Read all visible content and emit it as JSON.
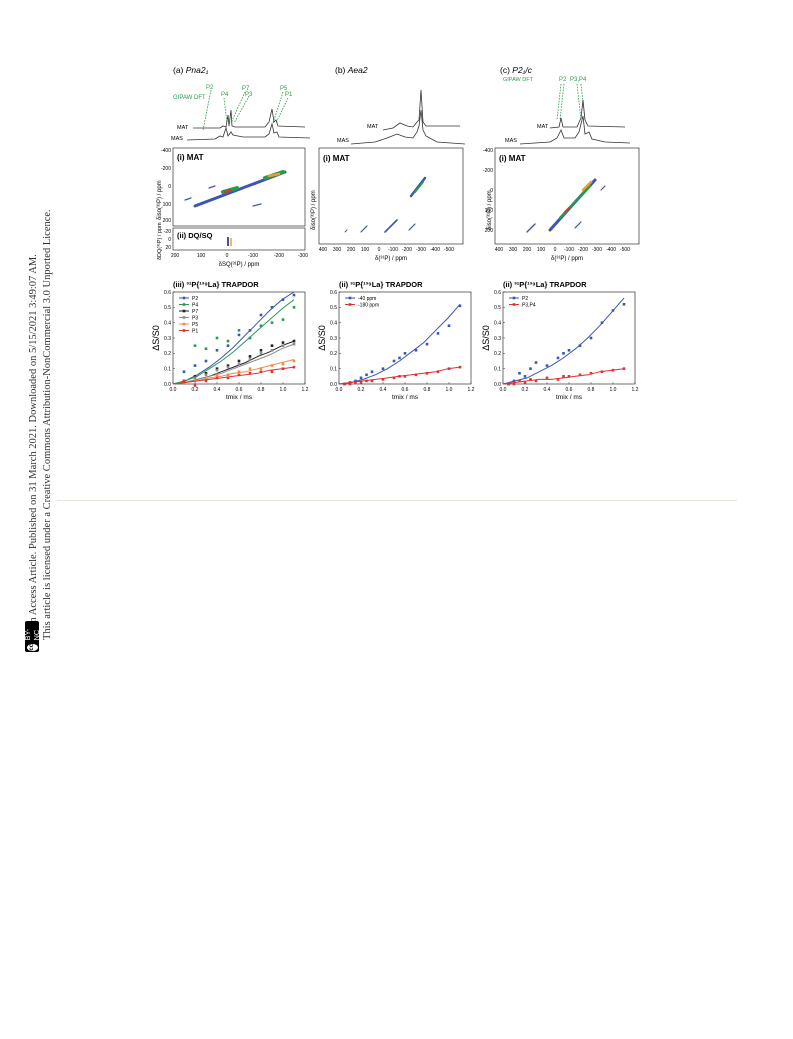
{
  "sidebar": {
    "line1": "Open Access Article. Published on 31 March 2021. Downloaded on 5/15/2021 3:49:07 AM.",
    "line2": "This article is licensed under a Creative Commons Attribution-NonCommercial 3.0 Unported Licence.",
    "badge_cc": "cc",
    "badge_text": "BY-NC"
  },
  "figure": {
    "top": {
      "a": {
        "title_prefix": "(a) ",
        "title_italic": "Pna2₁",
        "gipaw": "GIPAW DFT",
        "peaks": [
          "P2",
          "P4",
          "P7",
          "P3",
          "P5",
          "P1"
        ],
        "mat": "MAT",
        "mas": "MAS"
      },
      "b": {
        "title_prefix": "(b) ",
        "title_italic": "Aea2",
        "mat": "MAT",
        "mas": "MAS"
      },
      "c": {
        "title_prefix": "(c) ",
        "title_italic": "P2₁/c",
        "gipaw": "GIPAW DFT",
        "peaks": [
          "P2",
          "P3,P4"
        ],
        "mat": "MAT",
        "mas": "MAS"
      }
    },
    "mat_panels": {
      "a": {
        "label": "(i) MAT",
        "ylabel": "δiso(³¹P) / ppm",
        "yticks": [
          "-400",
          "-200",
          "0",
          "100",
          "200"
        ]
      },
      "a_dq": {
        "label": "(ii) DQ/SQ",
        "ylabel": "δDQ(³¹P) / ppm",
        "yticks": [
          "-20",
          "0",
          "20"
        ],
        "xticks": [
          "200",
          "100",
          "0",
          "-100",
          "-200",
          "-300"
        ],
        "xlabel": "δSQ(³¹P) / ppm"
      },
      "b": {
        "label": "(i) MAT",
        "ylabel": "δiso(³¹P) / ppm",
        "yticks": [
          "-400",
          "-200",
          "0",
          "100",
          "200"
        ],
        "xticks": [
          "400",
          "300",
          "200",
          "100",
          "0",
          "-100",
          "-200",
          "-300",
          "-400",
          "-500"
        ],
        "xlabel": "δ(³¹P) / ppm"
      },
      "c": {
        "label": "(i) MAT",
        "ylabel": "δiso(³¹P) / ppm",
        "yticks": [
          "-400",
          "-200",
          "0",
          "100",
          "200"
        ],
        "xticks": [
          "400",
          "300",
          "200",
          "100",
          "0",
          "-100",
          "-200",
          "-300",
          "-400",
          "-500"
        ],
        "xlabel": "δ(³¹P) / ppm"
      }
    },
    "colors": {
      "P2": "#3a56b0",
      "P4": "#2a9a4a",
      "P7": "#222222",
      "P3": "#8a8a8a",
      "P5": "#f08a4b",
      "P1": "#e03030",
      "blue": "#3a56b0",
      "red": "#e03030",
      "green": "#2a9a4a"
    }
  },
  "chart_data": [
    {
      "type": "scatter",
      "title": "(iii) ³¹P{¹³⁹La} TRAPDOR",
      "xlabel": "tmix / ms",
      "ylabel": "ΔS/S0",
      "xlim": [
        0.0,
        1.2
      ],
      "ylim": [
        0.0,
        0.6
      ],
      "xticks": [
        "0.0",
        "0.2",
        "0.4",
        "0.6",
        "0.8",
        "1.0",
        "1.2"
      ],
      "yticks": [
        "0.0",
        "0.1",
        "0.2",
        "0.3",
        "0.4",
        "0.5",
        "0.6"
      ],
      "legend": "top-left",
      "series": [
        {
          "name": "P2",
          "color": "#3a56b0",
          "x": [
            0.1,
            0.2,
            0.3,
            0.4,
            0.5,
            0.6,
            0.7,
            0.8,
            0.9,
            1.0,
            1.1
          ],
          "y": [
            0.08,
            0.12,
            0.15,
            0.22,
            0.25,
            0.32,
            0.35,
            0.45,
            0.5,
            0.55,
            0.58
          ],
          "fit": [
            0.0,
            0.02,
            0.06,
            0.11,
            0.17,
            0.24,
            0.32,
            0.4,
            0.48,
            0.55,
            0.6
          ]
        },
        {
          "name": "P4",
          "color": "#2a9a4a",
          "x": [
            0.1,
            0.2,
            0.3,
            0.4,
            0.5,
            0.6,
            0.7,
            0.8,
            0.9,
            1.0,
            1.1
          ],
          "y": [
            0.02,
            0.25,
            0.23,
            0.3,
            0.28,
            0.35,
            0.3,
            0.38,
            0.4,
            0.42,
            0.5
          ],
          "fit": [
            0.0,
            0.02,
            0.05,
            0.1,
            0.15,
            0.21,
            0.28,
            0.35,
            0.42,
            0.49,
            0.55
          ]
        },
        {
          "name": "P7",
          "color": "#222222",
          "x": [
            0.1,
            0.2,
            0.3,
            0.4,
            0.5,
            0.6,
            0.7,
            0.8,
            0.9,
            1.0,
            1.1
          ],
          "y": [
            0.02,
            0.05,
            0.07,
            0.1,
            0.12,
            0.15,
            0.18,
            0.22,
            0.25,
            0.27,
            0.28
          ],
          "fit": [
            0.0,
            0.01,
            0.03,
            0.05,
            0.08,
            0.11,
            0.14,
            0.18,
            0.21,
            0.25,
            0.28
          ]
        },
        {
          "name": "P3",
          "color": "#8a8a8a",
          "x": [
            0.1,
            0.2,
            0.3,
            0.4,
            0.5,
            0.6,
            0.7,
            0.8,
            0.9,
            1.0,
            1.1
          ],
          "y": [
            0.01,
            0.04,
            0.06,
            0.09,
            0.11,
            0.13,
            0.16,
            0.2,
            0.22,
            0.25,
            0.26
          ],
          "fit": [
            0.0,
            0.01,
            0.03,
            0.05,
            0.07,
            0.1,
            0.13,
            0.16,
            0.19,
            0.23,
            0.26
          ]
        },
        {
          "name": "P5",
          "color": "#f08a4b",
          "x": [
            0.1,
            0.2,
            0.3,
            0.4,
            0.5,
            0.6,
            0.7,
            0.8,
            0.9,
            1.0,
            1.1
          ],
          "y": [
            0.01,
            0.02,
            0.03,
            0.06,
            0.06,
            0.08,
            0.1,
            0.1,
            0.12,
            0.13,
            0.15
          ],
          "fit": [
            0.0,
            0.01,
            0.02,
            0.04,
            0.05,
            0.07,
            0.08,
            0.1,
            0.12,
            0.14,
            0.16
          ]
        },
        {
          "name": "P1",
          "color": "#e03030",
          "x": [
            0.1,
            0.2,
            0.3,
            0.4,
            0.5,
            0.6,
            0.7,
            0.8,
            0.9,
            1.0,
            1.1
          ],
          "y": [
            0.02,
            -0.01,
            0.02,
            0.04,
            0.04,
            0.06,
            0.07,
            0.08,
            0.08,
            0.1,
            0.11
          ],
          "fit": [
            0.0,
            0.01,
            0.02,
            0.03,
            0.04,
            0.05,
            0.06,
            0.07,
            0.09,
            0.1,
            0.11
          ]
        }
      ]
    },
    {
      "type": "scatter",
      "title": "(ii) ³¹P{¹³⁹La} TRAPDOR",
      "xlabel": "tmix / ms",
      "ylabel": "ΔS/S0",
      "xlim": [
        0.0,
        1.2
      ],
      "ylim": [
        0.0,
        0.6
      ],
      "xticks": [
        "0.0",
        "0.2",
        "0.4",
        "0.6",
        "0.8",
        "1.0",
        "1.2"
      ],
      "yticks": [
        "0.0",
        "0.1",
        "0.2",
        "0.3",
        "0.4",
        "0.5",
        "0.6"
      ],
      "legend": "top-left",
      "series": [
        {
          "name": "-40 ppm",
          "color": "#3a56b0",
          "x": [
            0.05,
            0.1,
            0.15,
            0.2,
            0.25,
            0.3,
            0.4,
            0.5,
            0.55,
            0.6,
            0.7,
            0.8,
            0.9,
            1.0,
            1.1
          ],
          "y": [
            0.0,
            0.01,
            0.02,
            0.04,
            0.06,
            0.08,
            0.1,
            0.15,
            0.17,
            0.2,
            0.22,
            0.26,
            0.33,
            0.38,
            0.51
          ],
          "fit": [
            0.0,
            0.01,
            0.03,
            0.06,
            0.1,
            0.15,
            0.21,
            0.27,
            0.35,
            0.43,
            0.52
          ]
        },
        {
          "name": "-180 ppm",
          "color": "#e03030",
          "x": [
            0.05,
            0.1,
            0.15,
            0.2,
            0.25,
            0.3,
            0.4,
            0.5,
            0.55,
            0.6,
            0.7,
            0.8,
            0.9,
            1.0,
            1.1
          ],
          "y": [
            0.0,
            0.0,
            0.01,
            0.01,
            0.02,
            0.02,
            0.03,
            0.04,
            0.05,
            0.05,
            0.06,
            0.07,
            0.08,
            0.1,
            0.11
          ],
          "fit": [
            0.0,
            0.01,
            0.02,
            0.03,
            0.04,
            0.05,
            0.06,
            0.07,
            0.08,
            0.1,
            0.11
          ]
        }
      ]
    },
    {
      "type": "scatter",
      "title": "(ii) ³¹P{¹³⁹La} TRAPDOR",
      "xlabel": "tmix / ms",
      "ylabel": "ΔS/S0",
      "xlim": [
        0.0,
        1.2
      ],
      "ylim": [
        0.0,
        0.6
      ],
      "xticks": [
        "0.0",
        "0.2",
        "0.4",
        "0.6",
        "0.8",
        "1.0",
        "1.2"
      ],
      "yticks": [
        "0.0",
        "0.1",
        "0.2",
        "0.3",
        "0.4",
        "0.5",
        "0.6"
      ],
      "legend": "top-left",
      "series": [
        {
          "name": "P2",
          "color": "#3a56b0",
          "x": [
            0.05,
            0.1,
            0.15,
            0.2,
            0.25,
            0.3,
            0.4,
            0.5,
            0.55,
            0.6,
            0.7,
            0.8,
            0.9,
            1.0,
            1.1
          ],
          "y": [
            0.0,
            0.02,
            0.07,
            0.05,
            0.1,
            0.14,
            0.12,
            0.17,
            0.2,
            0.22,
            0.25,
            0.3,
            0.4,
            0.48,
            0.52
          ],
          "fit": [
            0.0,
            0.02,
            0.04,
            0.08,
            0.12,
            0.17,
            0.23,
            0.3,
            0.38,
            0.47,
            0.56
          ]
        },
        {
          "name": "P3,P4",
          "color": "#e03030",
          "x": [
            0.05,
            0.1,
            0.15,
            0.2,
            0.25,
            0.3,
            0.4,
            0.5,
            0.55,
            0.6,
            0.7,
            0.8,
            0.9,
            1.0,
            1.1
          ],
          "y": [
            0.0,
            0.0,
            0.02,
            0.01,
            0.03,
            0.02,
            0.04,
            0.03,
            0.05,
            0.05,
            0.06,
            0.07,
            0.08,
            0.09,
            0.1
          ],
          "fit": [
            0.0,
            0.01,
            0.02,
            0.03,
            0.03,
            0.04,
            0.05,
            0.06,
            0.08,
            0.09,
            0.1
          ]
        }
      ]
    }
  ]
}
